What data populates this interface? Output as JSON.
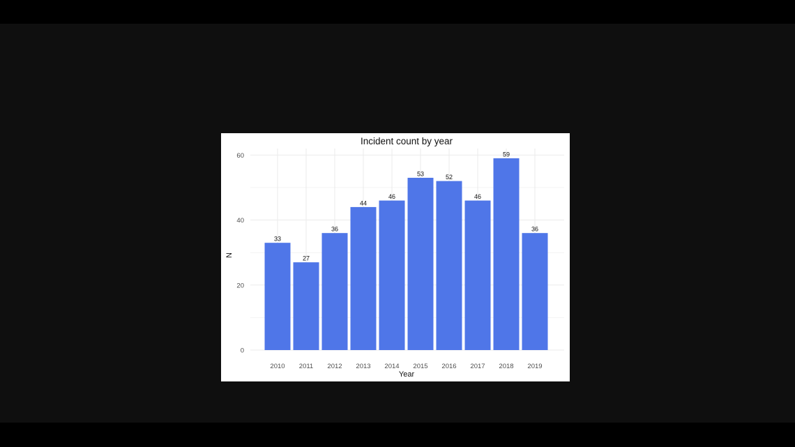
{
  "colors": {
    "background": "#000000",
    "frame": "#0f0f0f",
    "panel": "#ffffff",
    "bar": "#4f76e8",
    "grid": "#ebebeb"
  },
  "chart_data": {
    "type": "bar",
    "title": "Incident count by year",
    "xlabel": "Year",
    "ylabel": "N",
    "categories": [
      "2010",
      "2011",
      "2012",
      "2013",
      "2014",
      "2015",
      "2016",
      "2017",
      "2018",
      "2019"
    ],
    "values": [
      33,
      27,
      36,
      44,
      46,
      53,
      52,
      46,
      59,
      36
    ],
    "value_labels": [
      "33",
      "27",
      "36",
      "44",
      "46",
      "53",
      "52",
      "46",
      "59",
      "36"
    ],
    "y_ticks": [
      0,
      20,
      40,
      60
    ],
    "y_tick_labels": [
      "0",
      "20",
      "40",
      "60"
    ],
    "ylim": [
      0,
      62
    ],
    "grid": true,
    "legend": "none"
  }
}
